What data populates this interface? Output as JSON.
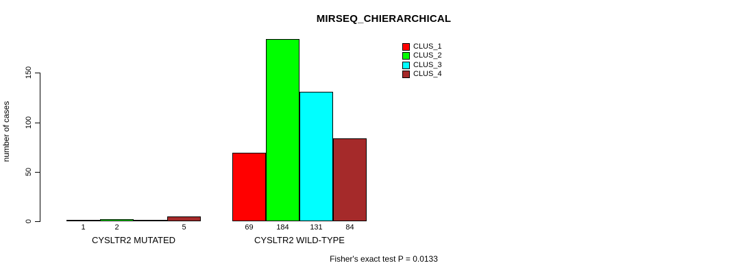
{
  "chart_data": {
    "type": "bar",
    "title": "MIRSEQ_CHIERARCHICAL",
    "ylabel": "number of cases",
    "xlabel": "",
    "categories": [
      "CYSLTR2 MUTATED",
      "CYSLTR2 WILD-TYPE"
    ],
    "series": [
      {
        "name": "CLUS_1",
        "color": "#FF0000",
        "values": [
          1,
          69
        ]
      },
      {
        "name": "CLUS_2",
        "color": "#00FF00",
        "values": [
          2,
          184
        ]
      },
      {
        "name": "CLUS_3",
        "color": "#00FFFF",
        "values": [
          0,
          131
        ]
      },
      {
        "name": "CLUS_4",
        "color": "#A52A2A",
        "values": [
          5,
          84
        ]
      }
    ],
    "value_labels": [
      [
        "1",
        "2",
        "",
        "5"
      ],
      [
        "69",
        "184",
        "131",
        "84"
      ]
    ],
    "yticks": [
      0,
      50,
      100,
      150
    ],
    "ylim": [
      0,
      184
    ],
    "grid": false,
    "legend_position": "top-right",
    "bar_border_color": "#000000",
    "axis_color": "#000000",
    "annotation": "Fisher's exact test P = 0.0133"
  }
}
